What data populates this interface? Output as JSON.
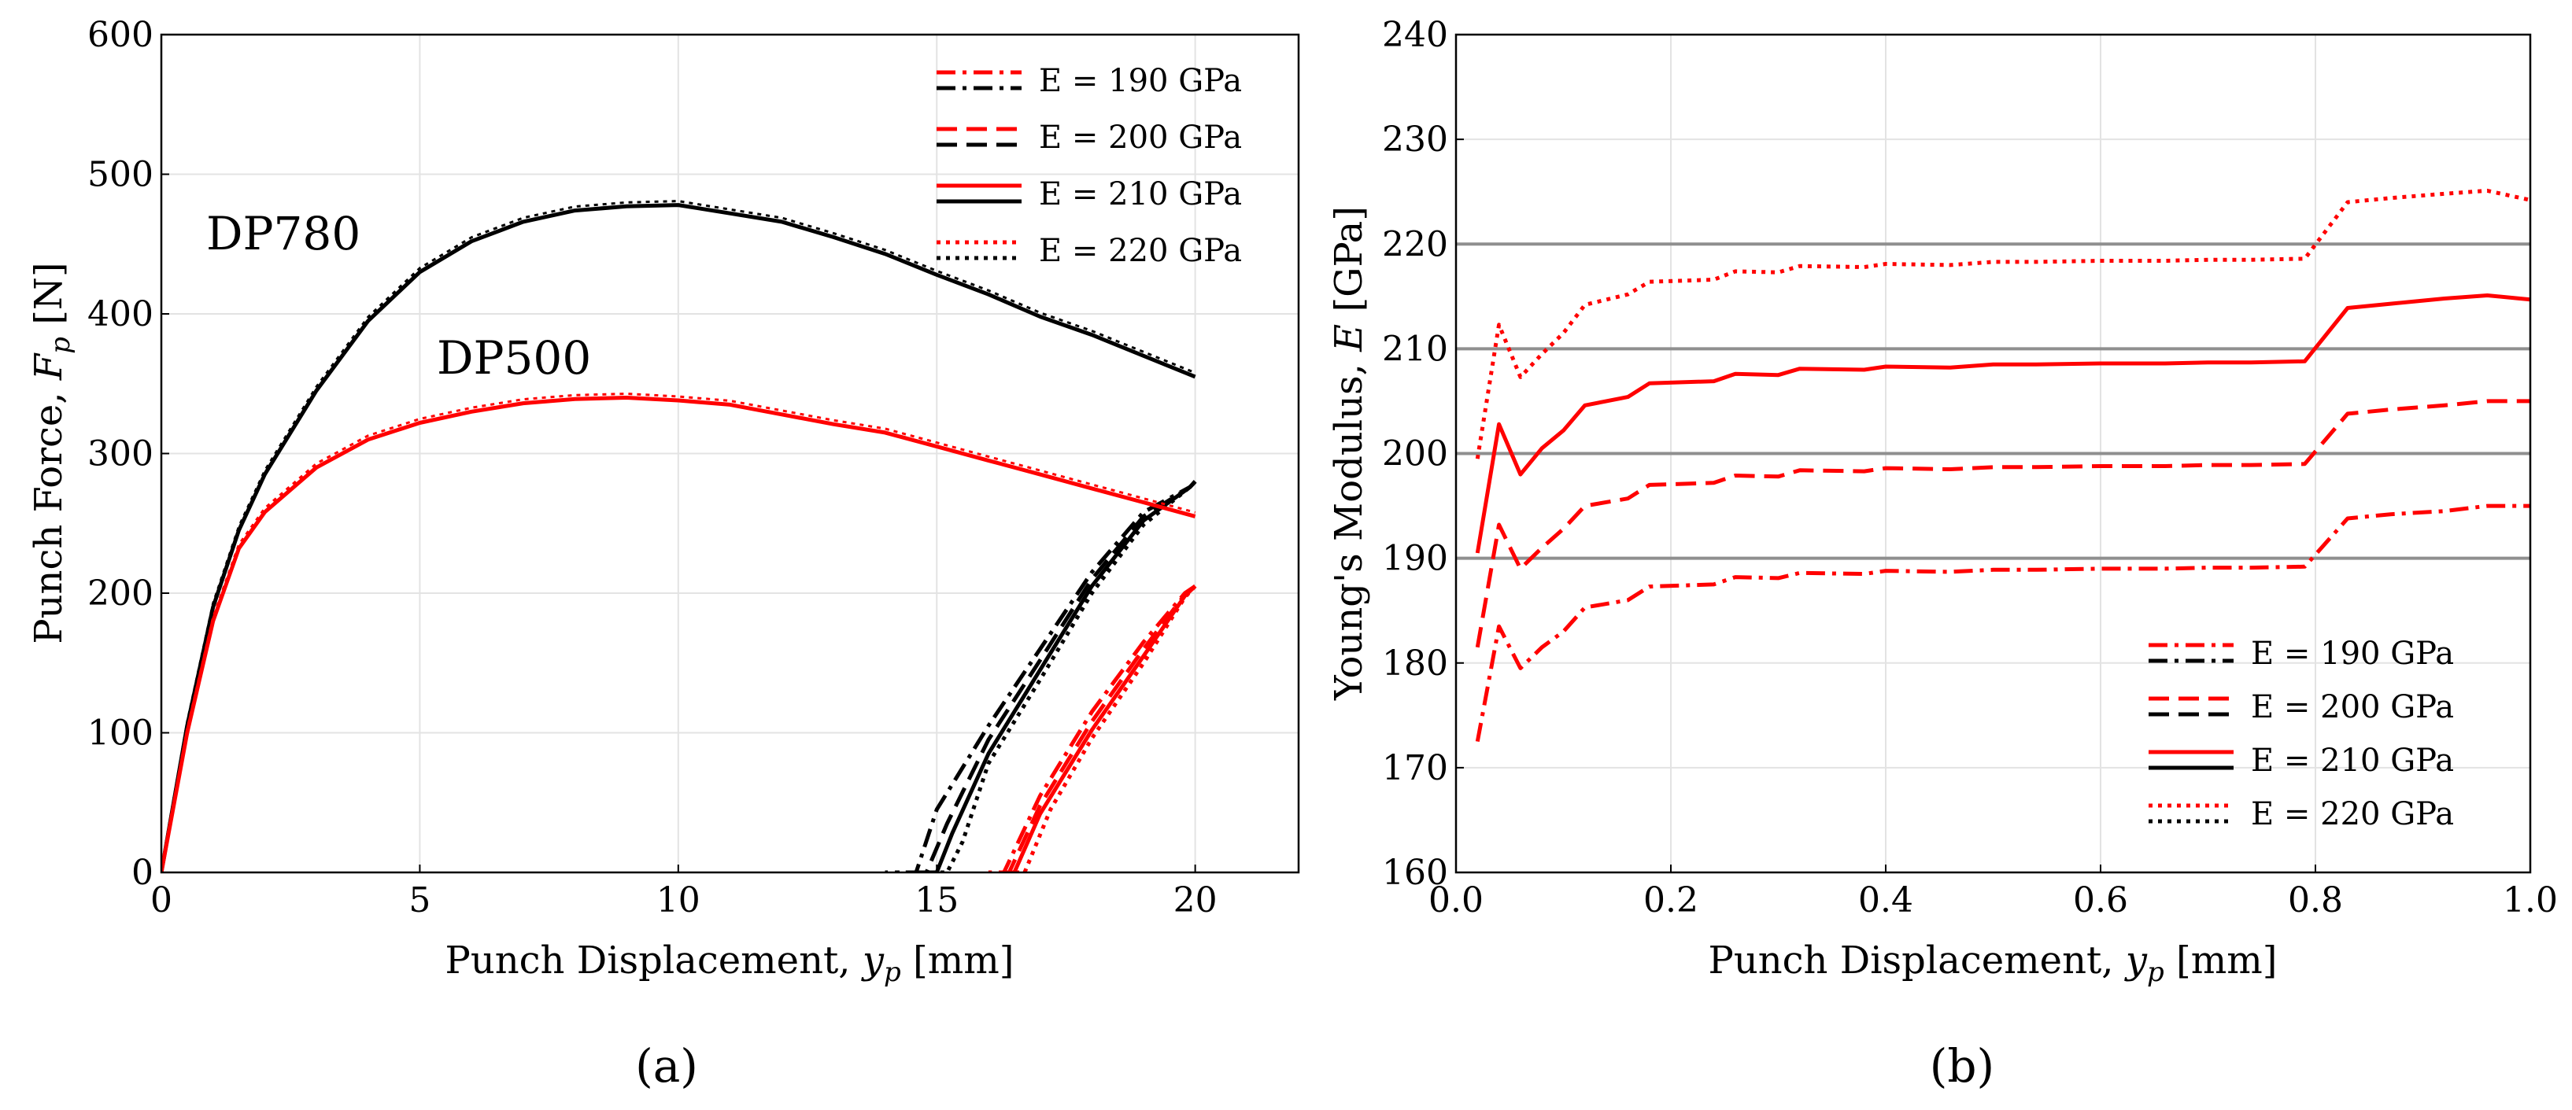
{
  "chart_data": [
    {
      "type": "line",
      "panel": "(a)",
      "xlabel_text": "Punch Displacement, ",
      "xlabel_sym": "y",
      "xlabel_sub": "p",
      "xlabel_unit": " [mm]",
      "ylabel_text": "Punch Force, ",
      "ylabel_sym": "F",
      "ylabel_sub": "p",
      "ylabel_unit": " [N]",
      "xlim": [
        0,
        22
      ],
      "ylim": [
        0,
        600
      ],
      "x_ticks": [
        "0",
        "5",
        "10",
        "15",
        "20"
      ],
      "y_ticks": [
        "0",
        "100",
        "200",
        "300",
        "400",
        "500",
        "600"
      ],
      "grid": true,
      "legend_position": "top-right",
      "legend": [
        "E = 190 GPa",
        "E = 200 GPa",
        "E = 210 GPa",
        "E = 220 GPa"
      ],
      "annotations": [
        {
          "text": "DP780",
          "x": 0.9,
          "y": 460
        },
        {
          "text": "DP500",
          "x": 5.3,
          "y": 365
        }
      ],
      "series": [
        {
          "name": "DP780 loading",
          "color": "#000000",
          "x": [
            0,
            0.5,
            1,
            1.5,
            2,
            3,
            4,
            5,
            6,
            7,
            8,
            9,
            10,
            11,
            12,
            13,
            14,
            15,
            16,
            17,
            18,
            19,
            20
          ],
          "y": [
            0,
            105,
            190,
            245,
            285,
            345,
            395,
            430,
            452,
            466,
            474,
            477,
            478,
            472,
            466,
            455,
            443,
            428,
            414,
            398,
            385,
            370,
            355
          ]
        },
        {
          "name": "DP780 unloading E=190",
          "color": "#000000",
          "dash": "dashdot",
          "x": [
            20,
            19.9,
            19,
            18,
            17,
            16,
            15,
            14.6,
            14
          ],
          "y": [
            280,
            276,
            258,
            215,
            160,
            105,
            45,
            0,
            0
          ]
        },
        {
          "name": "DP780 unloading E=200",
          "color": "#000000",
          "dash": "dashed",
          "x": [
            20,
            19.9,
            19,
            18,
            17,
            16,
            15.2,
            14.8,
            14.2
          ],
          "y": [
            280,
            276,
            255,
            210,
            152,
            95,
            35,
            0,
            0
          ]
        },
        {
          "name": "DP780 unloading E=210",
          "color": "#000000",
          "dash": "solid",
          "x": [
            20,
            19.9,
            19,
            18,
            17,
            16,
            15.3,
            15,
            14.4
          ],
          "y": [
            280,
            276,
            252,
            205,
            145,
            85,
            28,
            0,
            0
          ]
        },
        {
          "name": "DP780 unloading E=220",
          "color": "#000000",
          "dash": "dotted",
          "x": [
            20,
            19.9,
            19,
            18,
            17,
            16,
            15.5,
            15.2,
            14.6
          ],
          "y": [
            280,
            276,
            249,
            200,
            138,
            78,
            22,
            0,
            0
          ]
        },
        {
          "name": "DP500 loading",
          "color": "#ff0000",
          "x": [
            0,
            0.5,
            1,
            1.5,
            2,
            3,
            4,
            5,
            6,
            7,
            8,
            9,
            10,
            11,
            12,
            13,
            14,
            15,
            16,
            17,
            18,
            19,
            20
          ],
          "y": [
            0,
            100,
            180,
            232,
            258,
            290,
            310,
            322,
            330,
            336,
            339,
            340,
            338,
            335,
            328,
            321,
            315,
            305,
            295,
            285,
            275,
            265,
            255
          ]
        },
        {
          "name": "DP500 unloading E=190",
          "color": "#ff0000",
          "dash": "dashdot",
          "x": [
            20,
            19.8,
            19,
            18,
            17,
            16.3,
            16
          ],
          "y": [
            205,
            200,
            165,
            115,
            55,
            0,
            0
          ]
        },
        {
          "name": "DP500 unloading E=200",
          "color": "#ff0000",
          "dash": "dashed",
          "x": [
            20,
            19.8,
            19,
            18,
            17,
            16.4,
            16.1
          ],
          "y": [
            205,
            199,
            160,
            108,
            48,
            0,
            0
          ]
        },
        {
          "name": "DP500 unloading E=210",
          "color": "#ff0000",
          "dash": "solid",
          "x": [
            20,
            19.8,
            19,
            18,
            17,
            16.5,
            16.2
          ],
          "y": [
            205,
            198,
            155,
            102,
            42,
            0,
            0
          ]
        },
        {
          "name": "DP500 unloading E=220",
          "color": "#ff0000",
          "dash": "dotted",
          "x": [
            20,
            19.8,
            19,
            18,
            17.2,
            16.7,
            16.4
          ],
          "y": [
            205,
            197,
            150,
            96,
            45,
            0,
            0
          ]
        }
      ]
    },
    {
      "type": "line",
      "panel": "(b)",
      "xlabel_text": "Punch Displacement, ",
      "xlabel_sym": "y",
      "xlabel_sub": "p",
      "xlabel_unit": " [mm]",
      "ylabel_text": "Young's Modulus, ",
      "ylabel_sym": "E",
      "ylabel_unit": " [GPa]",
      "xlim": [
        0,
        1.0
      ],
      "ylim": [
        160,
        240
      ],
      "x_ticks": [
        "0.0",
        "0.2",
        "0.4",
        "0.6",
        "0.8",
        "1.0"
      ],
      "y_ticks": [
        "160",
        "170",
        "180",
        "190",
        "200",
        "210",
        "220",
        "230",
        "240"
      ],
      "grid": true,
      "reference_lines": [
        190,
        200,
        210,
        220
      ],
      "legend_position": "lower-right",
      "legend": [
        "E = 190 GPa",
        "E = 200 GPa",
        "E = 210 GPa",
        "E = 220 GPa"
      ],
      "series": [
        {
          "name": "E = 190 GPa",
          "color": "#ff0000",
          "dash": "dashdot",
          "x": [
            0.02,
            0.04,
            0.06,
            0.08,
            0.1,
            0.12,
            0.16,
            0.18,
            0.24,
            0.26,
            0.3,
            0.32,
            0.38,
            0.4,
            0.46,
            0.5,
            0.54,
            0.6,
            0.66,
            0.7,
            0.74,
            0.79,
            0.83,
            0.87,
            0.92,
            0.96,
            1.0
          ],
          "y": [
            172.5,
            183.5,
            179.5,
            181.5,
            183,
            185.3,
            186,
            187.3,
            187.5,
            188.2,
            188.1,
            188.6,
            188.5,
            188.8,
            188.7,
            188.9,
            188.9,
            189,
            189,
            189.1,
            189.1,
            189.2,
            193.8,
            194.2,
            194.5,
            195,
            195
          ]
        },
        {
          "name": "E = 200 GPa",
          "color": "#ff0000",
          "dash": "dashed",
          "x": [
            0.02,
            0.04,
            0.06,
            0.08,
            0.1,
            0.12,
            0.16,
            0.18,
            0.24,
            0.26,
            0.3,
            0.32,
            0.38,
            0.4,
            0.46,
            0.5,
            0.54,
            0.6,
            0.66,
            0.7,
            0.74,
            0.79,
            0.83,
            0.87,
            0.92,
            0.96,
            1.0
          ],
          "y": [
            181.5,
            193.2,
            189,
            191,
            192.8,
            195,
            195.7,
            197,
            197.2,
            197.9,
            197.8,
            198.4,
            198.3,
            198.6,
            198.5,
            198.7,
            198.7,
            198.8,
            198.8,
            198.9,
            198.9,
            199,
            203.8,
            204.2,
            204.6,
            205,
            205
          ]
        },
        {
          "name": "E = 210 GPa",
          "color": "#ff0000",
          "dash": "solid",
          "x": [
            0.02,
            0.04,
            0.06,
            0.08,
            0.1,
            0.12,
            0.16,
            0.18,
            0.24,
            0.26,
            0.3,
            0.32,
            0.38,
            0.4,
            0.46,
            0.5,
            0.54,
            0.6,
            0.66,
            0.7,
            0.74,
            0.79,
            0.83,
            0.87,
            0.92,
            0.96,
            1.0
          ],
          "y": [
            190.5,
            202.8,
            198,
            200.5,
            202.2,
            204.6,
            205.4,
            206.7,
            206.9,
            207.6,
            207.5,
            208.1,
            208,
            208.3,
            208.2,
            208.5,
            208.5,
            208.6,
            208.6,
            208.7,
            208.7,
            208.8,
            213.9,
            214.3,
            214.8,
            215.1,
            214.7
          ]
        },
        {
          "name": "E = 220 GPa",
          "color": "#ff0000",
          "dash": "dotted",
          "x": [
            0.02,
            0.04,
            0.06,
            0.08,
            0.1,
            0.12,
            0.16,
            0.18,
            0.24,
            0.26,
            0.3,
            0.32,
            0.38,
            0.4,
            0.46,
            0.5,
            0.54,
            0.6,
            0.66,
            0.7,
            0.74,
            0.79,
            0.83,
            0.87,
            0.92,
            0.96,
            1.0
          ],
          "y": [
            199.5,
            212.3,
            207.3,
            209.5,
            211.5,
            214.2,
            215.2,
            216.4,
            216.6,
            217.4,
            217.3,
            217.9,
            217.8,
            218.1,
            218,
            218.3,
            218.3,
            218.4,
            218.4,
            218.5,
            218.5,
            218.6,
            224,
            224.4,
            224.8,
            225.1,
            224.2
          ]
        }
      ]
    }
  ],
  "captions": {
    "a": "(a)",
    "b": "(b)"
  }
}
